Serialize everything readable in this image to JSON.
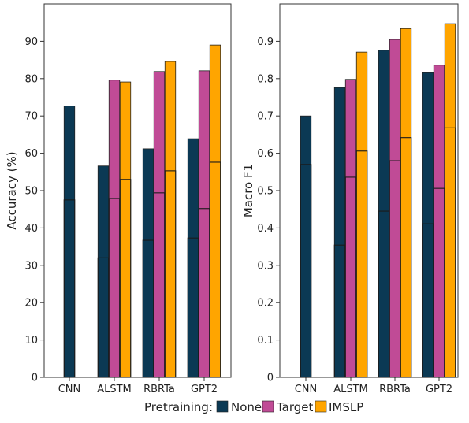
{
  "colors": {
    "None": "#0b3954",
    "Target": "#c04b96",
    "IMSLP": "#ffa500"
  },
  "legend": {
    "title": "Pretraining:",
    "items": [
      "None",
      "Target",
      "IMSLP"
    ]
  },
  "chart_data": [
    {
      "type": "bar",
      "ylabel": "Accuracy (%)",
      "xlabel": "",
      "ylim": [
        0,
        100
      ],
      "yticks": [
        0,
        10,
        20,
        30,
        40,
        50,
        60,
        70,
        80,
        90
      ],
      "ytick_labels": [
        "0",
        "10",
        "20",
        "30",
        "40",
        "50",
        "60",
        "70",
        "80",
        "90"
      ],
      "categories": [
        "CNN",
        "ALSTM",
        "RBRTa",
        "GPT2"
      ],
      "grid": false,
      "legend_position": "bottom",
      "series": [
        {
          "name": "None",
          "values": [
            72.7,
            56.6,
            61.2,
            63.9
          ],
          "inner_values": [
            47.5,
            32.0,
            36.7,
            37.3
          ]
        },
        {
          "name": "Target",
          "values": [
            null,
            79.6,
            81.9,
            82.1
          ],
          "inner_values": [
            null,
            47.9,
            49.4,
            45.2
          ]
        },
        {
          "name": "IMSLP",
          "values": [
            null,
            79.1,
            84.6,
            89.0
          ],
          "inner_values": [
            null,
            53.0,
            55.3,
            57.6
          ]
        }
      ]
    },
    {
      "type": "bar",
      "ylabel": "Macro F1",
      "xlabel": "",
      "ylim": [
        0,
        1.0
      ],
      "yticks": [
        0,
        0.1,
        0.2,
        0.3,
        0.4,
        0.5,
        0.6,
        0.7,
        0.8,
        0.9
      ],
      "ytick_labels": [
        "0",
        "0.1",
        "0.2",
        "0.3",
        "0.4",
        "0.5",
        "0.6",
        "0.7",
        "0.8",
        "0.9"
      ],
      "categories": [
        "CNN",
        "ALSTM",
        "RBRTa",
        "GPT2"
      ],
      "grid": false,
      "legend_position": "bottom",
      "series": [
        {
          "name": "None",
          "values": [
            0.7,
            0.776,
            0.876,
            0.816
          ],
          "inner_values": [
            0.57,
            0.354,
            0.445,
            0.411
          ]
        },
        {
          "name": "Target",
          "values": [
            null,
            0.798,
            0.905,
            0.836
          ],
          "inner_values": [
            null,
            0.536,
            0.58,
            0.506
          ]
        },
        {
          "name": "IMSLP",
          "values": [
            null,
            0.871,
            0.934,
            0.947
          ],
          "inner_values": [
            null,
            0.606,
            0.642,
            0.668
          ]
        }
      ]
    }
  ]
}
